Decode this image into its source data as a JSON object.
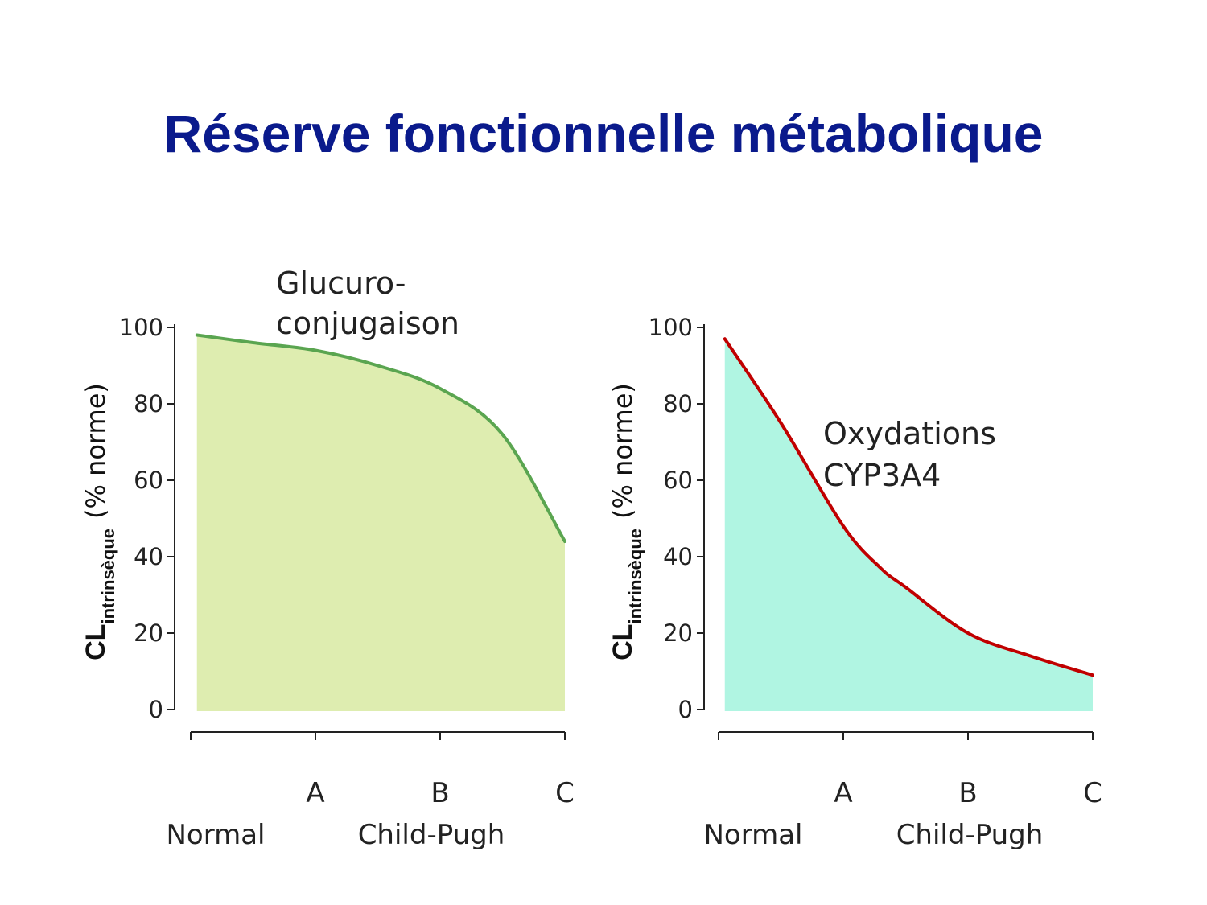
{
  "title": "Réserve fonctionnelle métabolique",
  "colors": {
    "title": "#0a1a8c",
    "glucuro_fill": "#deedb0",
    "glucuro_line": "#5aa550",
    "oxy_fill": "#b0f5e2",
    "oxy_line": "#c00000",
    "axis": "#222222"
  },
  "chart_data": [
    {
      "type": "area",
      "annotation": [
        "Glucuro-",
        "conjugaison"
      ],
      "ylabel": {
        "main": "CL",
        "sub": "intrinsèque",
        "unit": "(% norme)"
      },
      "ylim": [
        0,
        100
      ],
      "yticks": [
        "0",
        "20",
        "40",
        "60",
        "80",
        "100"
      ],
      "xcategories": [
        "",
        "A",
        "B",
        "C"
      ],
      "xgroup_labels": [
        "Normal",
        "Child-Pugh"
      ],
      "xlim": [
        0,
        3
      ],
      "x": [
        0.05,
        0.5,
        1.0,
        1.5,
        2.0,
        2.5,
        3.0
      ],
      "y": [
        98,
        96,
        94,
        90,
        84,
        72,
        44
      ]
    },
    {
      "type": "area",
      "annotation": [
        "Oxydations",
        "CYP3A4"
      ],
      "ylabel": {
        "main": "CL",
        "sub": "intrinsèque",
        "unit": "(% norme)"
      },
      "ylim": [
        0,
        100
      ],
      "yticks": [
        "0",
        "20",
        "40",
        "60",
        "80",
        "100"
      ],
      "xcategories": [
        "",
        "A",
        "B",
        "C"
      ],
      "xgroup_labels": [
        "Normal",
        "Child-Pugh"
      ],
      "xlim": [
        0,
        3
      ],
      "x": [
        0.05,
        0.5,
        1.0,
        1.3,
        1.5,
        2.0,
        2.5,
        3.0
      ],
      "y": [
        97,
        75,
        48,
        37,
        32,
        20,
        14,
        9
      ]
    }
  ]
}
